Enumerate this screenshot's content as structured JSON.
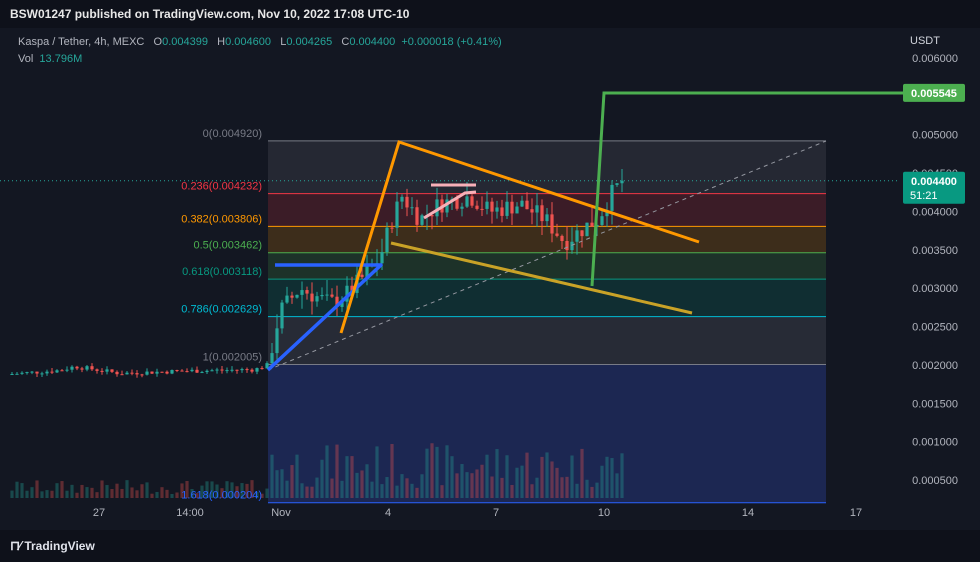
{
  "header": {
    "published": "BSW01247 published on TradingView.com, Nov 10, 2022 17:08 UTC-10"
  },
  "legend": {
    "symbol": "Kaspa / Tether, 4h, MEXC",
    "o_label": "O",
    "o_value": "0.004399",
    "h_label": "H",
    "h_value": "0.004600",
    "l_label": "L",
    "l_value": "0.004265",
    "c_label": "C",
    "c_value": "0.004400",
    "change": "+0.000018 (+0.41%)",
    "vol_label": "Vol",
    "vol_value": "13.796M"
  },
  "branding": {
    "logo_text": "TradingView"
  },
  "chart_data": {
    "type": "line",
    "currency_label": "USDT",
    "y_ticks": [
      0.0005,
      0.001,
      0.0015,
      0.002,
      0.0025,
      0.003,
      0.0035,
      0.004,
      0.0045,
      0.005,
      0.0055,
      0.006
    ],
    "y_tick_labels": [
      "0.000500",
      "0.001000",
      "0.001500",
      "0.002000",
      "0.002500",
      "0.003000",
      "0.003500",
      "0.004000",
      "0.004500",
      "0.005000",
      "0.005500",
      "0.006000"
    ],
    "x_ticks": [
      "27",
      "14:00",
      "Nov",
      "4",
      "7",
      "10",
      "14",
      "17"
    ],
    "last_price": {
      "label": "0.004400",
      "countdown": "51:21",
      "value": 0.0044
    },
    "target_label": {
      "label": "0.005545",
      "value": 0.005545
    },
    "fib_levels": [
      {
        "ratio": "0",
        "price": "0.004920",
        "value": 0.00492,
        "color": "#787b86"
      },
      {
        "ratio": "0.236",
        "price": "0.004232",
        "value": 0.004232,
        "color": "#f23645"
      },
      {
        "ratio": "0.382",
        "price": "0.003806",
        "value": 0.003806,
        "color": "#ff9800"
      },
      {
        "ratio": "0.5",
        "price": "0.003462",
        "value": 0.003462,
        "color": "#4caf50"
      },
      {
        "ratio": "0.618",
        "price": "0.003118",
        "value": 0.003118,
        "color": "#089981"
      },
      {
        "ratio": "0.786",
        "price": "0.002629",
        "value": 0.002629,
        "color": "#00bcd4"
      },
      {
        "ratio": "1",
        "price": "0.002005",
        "value": 0.002005,
        "color": "#787b86"
      },
      {
        "ratio": "1.618",
        "price": "0.000204",
        "value": 0.000204,
        "color": "#2962ff"
      }
    ]
  }
}
